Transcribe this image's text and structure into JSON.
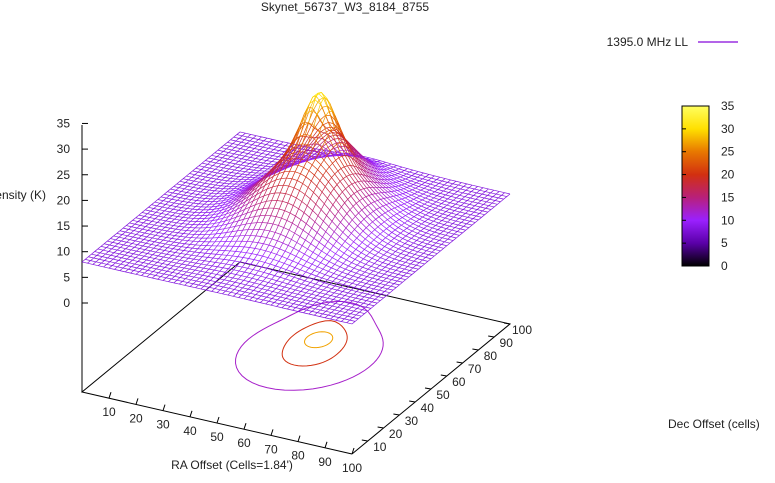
{
  "chart_data": {
    "type": "surface3d",
    "title": "Skynet_56737_W3_8184_8755",
    "legend": {
      "entries": [
        "1395.0 MHz LL"
      ],
      "position": "top-right"
    },
    "xlabel": "RA Offset (Cells=1.84')",
    "ylabel": "Dec Offset (cells)",
    "zlabel": "Intensity (K)",
    "xticks": [
      "10",
      "20",
      "30",
      "40",
      "50",
      "60",
      "70",
      "80",
      "90",
      "100"
    ],
    "yticks": [
      "10",
      "20",
      "30",
      "40",
      "50",
      "60",
      "70",
      "80",
      "90",
      "100"
    ],
    "zticks": [
      "0",
      "5",
      "10",
      "15",
      "20",
      "25",
      "30",
      "35"
    ],
    "colorbar": {
      "ticks": [
        "0",
        "5",
        "10",
        "15",
        "20",
        "25",
        "30",
        "35"
      ],
      "range": [
        0,
        35
      ],
      "palette": [
        "#000000",
        "#5a00a8",
        "#9a20ff",
        "#b8207a",
        "#d23010",
        "#e87800",
        "#ffe000",
        "#ffff60"
      ]
    },
    "xlim": [
      0,
      100
    ],
    "ylim": [
      0,
      100
    ],
    "zlim": [
      0,
      35
    ],
    "surface": {
      "baseline": 8,
      "components": [
        {
          "x0": 52,
          "y0": 55,
          "amp": 14,
          "sx": 20,
          "sy": 24
        },
        {
          "x0": 50,
          "y0": 65,
          "amp": 10,
          "sx": 7,
          "sy": 8
        },
        {
          "x0": 46,
          "y0": 80,
          "amp": 6,
          "sx": 10,
          "sy": 12
        }
      ],
      "peak": 35
    },
    "contours": [
      12,
      20,
      27
    ]
  }
}
